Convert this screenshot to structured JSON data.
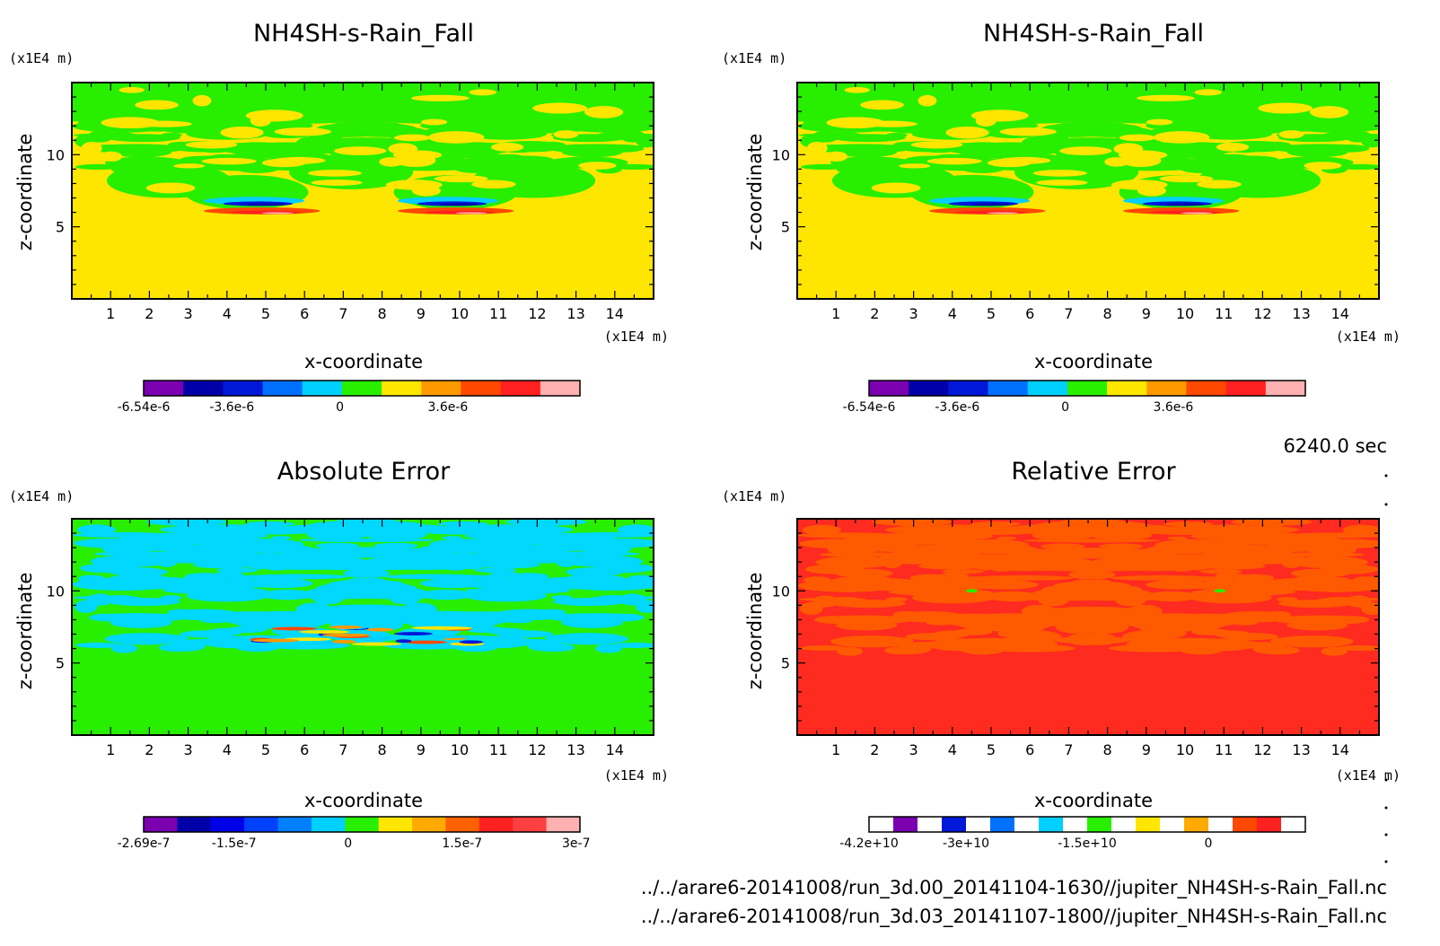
{
  "time_label": "6240.0 sec",
  "file_paths": [
    "../../arare6-20141008/run_3d.00_20141104-1630//jupiter_NH4SH-s-Rain_Fall.nc",
    "../../arare6-20141008/run_3d.03_20141107-1800//jupiter_NH4SH-s-Rain_Fall.nc"
  ],
  "chart_data": [
    {
      "id": "p1",
      "type": "heatmap",
      "title": "NH4SH-s-Rain_Fall",
      "xlabel": "x-coordinate",
      "ylabel": "z-coordinate",
      "x_unit": "(x1E4 m)",
      "y_unit": "(x1E4 m)",
      "xlim": [
        0,
        15
      ],
      "ylim": [
        0,
        15
      ],
      "x_ticks": [
        1,
        2,
        3,
        4,
        5,
        6,
        7,
        8,
        9,
        10,
        11,
        12,
        13,
        14
      ],
      "y_ticks": [
        5,
        10
      ],
      "background": "#ffe600",
      "pattern": "green",
      "colorbar": {
        "colors": [
          "#7a00b0",
          "#0000a8",
          "#0018d8",
          "#0070ff",
          "#00d0ff",
          "#28ee00",
          "#ffe600",
          "#ff9900",
          "#ff4800",
          "#ff2020",
          "#ffb0b0"
        ],
        "tick_labels": [
          "-6.54e-6",
          "-3.6e-6",
          "0",
          "3.6e-6"
        ],
        "tick_values": [
          -6.54e-06,
          -3.6e-06,
          0,
          3.6e-06
        ],
        "range": [
          -6.54e-06,
          8e-06
        ]
      }
    },
    {
      "id": "p2",
      "type": "heatmap",
      "title": "NH4SH-s-Rain_Fall",
      "xlabel": "x-coordinate",
      "ylabel": "z-coordinate",
      "x_unit": "(x1E4 m)",
      "y_unit": "(x1E4 m)",
      "xlim": [
        0,
        15
      ],
      "ylim": [
        0,
        15
      ],
      "x_ticks": [
        1,
        2,
        3,
        4,
        5,
        6,
        7,
        8,
        9,
        10,
        11,
        12,
        13,
        14
      ],
      "y_ticks": [
        5,
        10
      ],
      "background": "#ffe600",
      "pattern": "green",
      "colorbar": {
        "colors": [
          "#7a00b0",
          "#0000a8",
          "#0018d8",
          "#0070ff",
          "#00d0ff",
          "#28ee00",
          "#ffe600",
          "#ff9900",
          "#ff4800",
          "#ff2020",
          "#ffb0b0"
        ],
        "tick_labels": [
          "-6.54e-6",
          "-3.6e-6",
          "0",
          "3.6e-6"
        ],
        "tick_values": [
          -6.54e-06,
          -3.6e-06,
          0,
          3.6e-06
        ],
        "range": [
          -6.54e-06,
          8e-06
        ]
      }
    },
    {
      "id": "p3",
      "type": "heatmap",
      "title": "Absolute Error",
      "xlabel": "x-coordinate",
      "ylabel": "z-coordinate",
      "x_unit": "(x1E4 m)",
      "y_unit": "(x1E4 m)",
      "xlim": [
        0,
        15
      ],
      "ylim": [
        0,
        15
      ],
      "x_ticks": [
        1,
        2,
        3,
        4,
        5,
        6,
        7,
        8,
        9,
        10,
        11,
        12,
        13,
        14
      ],
      "y_ticks": [
        5,
        10
      ],
      "background": "#28ee00",
      "pattern": "cyan",
      "colorbar": {
        "colors": [
          "#7a00b0",
          "#0000a8",
          "#0000e8",
          "#0040ff",
          "#0080ff",
          "#00d0ff",
          "#28ee00",
          "#ffe600",
          "#ffaa00",
          "#ff6000",
          "#ff2020",
          "#ff4040",
          "#ffb0b0"
        ],
        "tick_labels": [
          "-2.69e-7",
          "-1.5e-7",
          "0",
          "1.5e-7",
          "3e-7"
        ],
        "tick_values": [
          -2.69e-07,
          -1.5e-07,
          0,
          1.5e-07,
          3e-07
        ],
        "range": [
          -2.69e-07,
          3.05e-07
        ]
      }
    },
    {
      "id": "p4",
      "type": "heatmap",
      "title": "Relative Error",
      "xlabel": "x-coordinate",
      "ylabel": "z-coordinate",
      "x_unit": "(x1E4 m)",
      "y_unit": "(x1E4 m)",
      "xlim": [
        0,
        15
      ],
      "ylim": [
        0,
        15
      ],
      "x_ticks": [
        1,
        2,
        3,
        4,
        5,
        6,
        7,
        8,
        9,
        10,
        11,
        12,
        13,
        14
      ],
      "y_ticks": [
        5,
        10
      ],
      "background": "#ff2a20",
      "pattern": "orange",
      "colorbar": {
        "colors": [
          "#ffffff",
          "#7a00b0",
          "#ffffff",
          "#0018d8",
          "#ffffff",
          "#0070ff",
          "#ffffff",
          "#00d0ff",
          "#ffffff",
          "#28ee00",
          "#ffffff",
          "#ffe600",
          "#ffffff",
          "#ffaa00",
          "#ffffff",
          "#ff4800",
          "#ff2020",
          "#ffffff"
        ],
        "tick_labels": [
          "-4.2e+10",
          "-3e+10",
          "-1.5e+10",
          "0"
        ],
        "tick_values": [
          -42000000000.0,
          -30000000000.0,
          -15000000000.0,
          0
        ],
        "range": [
          -42000000000.0,
          12000000000.0
        ]
      }
    }
  ]
}
